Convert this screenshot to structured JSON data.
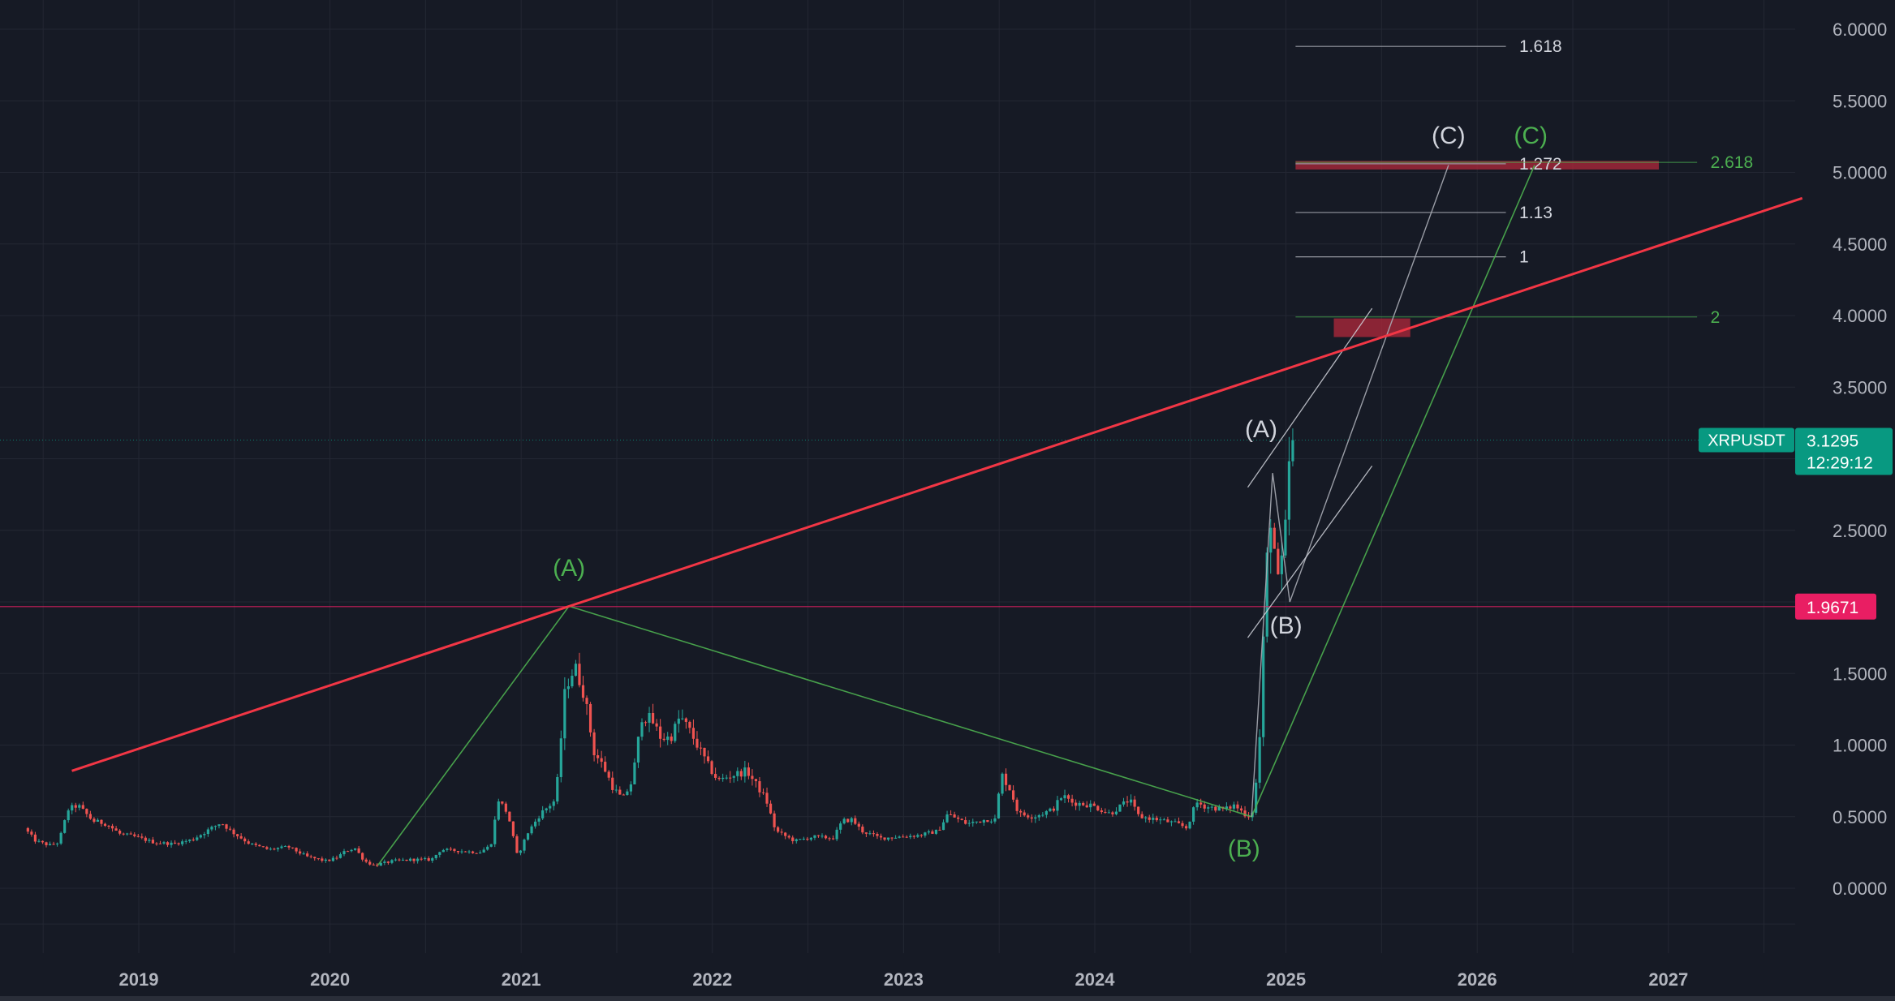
{
  "chart_data": {
    "type": "candlestick",
    "symbol": "XRPUSDT",
    "last_price": "3.1295",
    "countdown": "12:29:12",
    "marked_level_label": "1.9671",
    "marked_level_value": 1.9671,
    "ylim": [
      -0.35,
      6.1
    ],
    "y_ticks": [
      {
        "value": 6.0,
        "label": "6.0000"
      },
      {
        "value": 5.5,
        "label": "5.5000"
      },
      {
        "value": 5.0,
        "label": "5.0000"
      },
      {
        "value": 4.5,
        "label": "4.5000"
      },
      {
        "value": 4.0,
        "label": "4.0000"
      },
      {
        "value": 3.5,
        "label": "3.5000"
      },
      {
        "value": 2.5,
        "label": "2.5000"
      },
      {
        "value": 1.5,
        "label": "1.5000"
      },
      {
        "value": 1.0,
        "label": "1.0000"
      },
      {
        "value": 0.5,
        "label": "0.5000"
      },
      {
        "value": 0.0,
        "label": "0.0000"
      }
    ],
    "x_ticks": [
      {
        "value": 2019,
        "label": "2019"
      },
      {
        "value": 2020,
        "label": "2020"
      },
      {
        "value": 2021,
        "label": "2021"
      },
      {
        "value": 2022,
        "label": "2022"
      },
      {
        "value": 2023,
        "label": "2023"
      },
      {
        "value": 2024,
        "label": "2024"
      },
      {
        "value": 2025,
        "label": "2025"
      },
      {
        "value": 2026,
        "label": "2026"
      },
      {
        "value": 2027,
        "label": "2027"
      }
    ],
    "price_path": [
      [
        2018.42,
        0.42
      ],
      [
        2018.48,
        0.33
      ],
      [
        2018.55,
        0.3
      ],
      [
        2018.6,
        0.32
      ],
      [
        2018.65,
        0.55
      ],
      [
        2018.7,
        0.58
      ],
      [
        2018.78,
        0.47
      ],
      [
        2018.85,
        0.45
      ],
      [
        2018.92,
        0.38
      ],
      [
        2019.0,
        0.36
      ],
      [
        2019.1,
        0.32
      ],
      [
        2019.2,
        0.31
      ],
      [
        2019.3,
        0.34
      ],
      [
        2019.4,
        0.42
      ],
      [
        2019.45,
        0.46
      ],
      [
        2019.5,
        0.4
      ],
      [
        2019.6,
        0.31
      ],
      [
        2019.7,
        0.27
      ],
      [
        2019.8,
        0.29
      ],
      [
        2019.9,
        0.22
      ],
      [
        2020.0,
        0.19
      ],
      [
        2020.05,
        0.21
      ],
      [
        2020.1,
        0.26
      ],
      [
        2020.15,
        0.28
      ],
      [
        2020.2,
        0.19
      ],
      [
        2020.25,
        0.16
      ],
      [
        2020.35,
        0.19
      ],
      [
        2020.45,
        0.2
      ],
      [
        2020.55,
        0.2
      ],
      [
        2020.6,
        0.27
      ],
      [
        2020.7,
        0.26
      ],
      [
        2020.8,
        0.25
      ],
      [
        2020.86,
        0.3
      ],
      [
        2020.9,
        0.62
      ],
      [
        2020.95,
        0.52
      ],
      [
        2021.0,
        0.22
      ],
      [
        2021.05,
        0.38
      ],
      [
        2021.12,
        0.52
      ],
      [
        2021.2,
        0.62
      ],
      [
        2021.25,
        1.4
      ],
      [
        2021.3,
        1.55
      ],
      [
        2021.35,
        1.35
      ],
      [
        2021.4,
        0.95
      ],
      [
        2021.45,
        0.85
      ],
      [
        2021.5,
        0.7
      ],
      [
        2021.55,
        0.62
      ],
      [
        2021.6,
        0.75
      ],
      [
        2021.65,
        1.2
      ],
      [
        2021.7,
        1.18
      ],
      [
        2021.75,
        1.05
      ],
      [
        2021.8,
        1.05
      ],
      [
        2021.85,
        1.2
      ],
      [
        2021.9,
        1.1
      ],
      [
        2022.0,
        0.85
      ],
      [
        2022.05,
        0.75
      ],
      [
        2022.1,
        0.78
      ],
      [
        2022.2,
        0.82
      ],
      [
        2022.25,
        0.72
      ],
      [
        2022.3,
        0.62
      ],
      [
        2022.35,
        0.4
      ],
      [
        2022.45,
        0.33
      ],
      [
        2022.55,
        0.36
      ],
      [
        2022.65,
        0.35
      ],
      [
        2022.7,
        0.47
      ],
      [
        2022.75,
        0.48
      ],
      [
        2022.8,
        0.4
      ],
      [
        2022.9,
        0.35
      ],
      [
        2023.0,
        0.36
      ],
      [
        2023.1,
        0.37
      ],
      [
        2023.2,
        0.4
      ],
      [
        2023.25,
        0.52
      ],
      [
        2023.35,
        0.45
      ],
      [
        2023.45,
        0.48
      ],
      [
        2023.5,
        0.48
      ],
      [
        2023.53,
        0.8
      ],
      [
        2023.58,
        0.68
      ],
      [
        2023.62,
        0.52
      ],
      [
        2023.7,
        0.5
      ],
      [
        2023.8,
        0.55
      ],
      [
        2023.85,
        0.65
      ],
      [
        2023.9,
        0.6
      ],
      [
        2024.0,
        0.58
      ],
      [
        2024.1,
        0.52
      ],
      [
        2024.2,
        0.62
      ],
      [
        2024.25,
        0.5
      ],
      [
        2024.35,
        0.48
      ],
      [
        2024.45,
        0.45
      ],
      [
        2024.5,
        0.42
      ],
      [
        2024.55,
        0.6
      ],
      [
        2024.6,
        0.57
      ],
      [
        2024.7,
        0.55
      ],
      [
        2024.75,
        0.58
      ],
      [
        2024.82,
        0.5
      ],
      [
        2024.85,
        0.55
      ],
      [
        2024.88,
        1.0
      ],
      [
        2024.9,
        1.7
      ],
      [
        2024.92,
        2.3
      ],
      [
        2024.94,
        2.6
      ],
      [
        2024.96,
        2.35
      ],
      [
        2024.98,
        2.1
      ],
      [
        2025.0,
        2.3
      ],
      [
        2025.02,
        2.55
      ],
      [
        2025.04,
        3.1
      ],
      [
        2025.05,
        3.13
      ]
    ],
    "drawings": {
      "red_trendline": {
        "from": [
          2018.65,
          0.82
        ],
        "to": [
          2027.7,
          4.82
        ]
      },
      "horizontal_level": {
        "value": 1.9671
      },
      "green_wave": [
        [
          2020.25,
          0.16
        ],
        [
          2021.25,
          1.97
        ],
        [
          2024.82,
          0.5
        ],
        [
          2026.3,
          5.05
        ]
      ],
      "white_wave": [
        [
          2024.82,
          0.5
        ],
        [
          2024.93,
          2.9
        ],
        [
          2025.02,
          2.0
        ],
        [
          2025.85,
          5.05
        ]
      ],
      "white_channel": [
        {
          "from": [
            2024.8,
            2.8
          ],
          "to": [
            2025.45,
            4.05
          ]
        },
        {
          "from": [
            2024.8,
            1.75
          ],
          "to": [
            2025.45,
            2.95
          ]
        }
      ],
      "red_zones": [
        {
          "x0": 2025.25,
          "x1": 2025.65,
          "y0": 3.85,
          "y1": 3.98
        },
        {
          "x0": 2025.05,
          "x1": 2026.95,
          "y0": 5.02,
          "y1": 5.08
        }
      ],
      "fib_white": [
        {
          "value": 5.88,
          "label": "1.618"
        },
        {
          "value": 5.06,
          "label": "1.272"
        },
        {
          "value": 4.72,
          "label": "1.13"
        },
        {
          "value": 4.41,
          "label": "1"
        }
      ],
      "fib_green": [
        {
          "value": 5.07,
          "label": "2.618"
        },
        {
          "value": 3.99,
          "label": "2"
        }
      ],
      "wave_labels": [
        {
          "text": "(A)",
          "x": 2021.25,
          "y": 2.18,
          "color": "green"
        },
        {
          "text": "(B)",
          "x": 2024.78,
          "y": 0.22,
          "color": "green"
        },
        {
          "text": "(C)",
          "x": 2026.28,
          "y": 5.2,
          "color": "green"
        },
        {
          "text": "(A)",
          "x": 2024.87,
          "y": 3.15,
          "color": "white"
        },
        {
          "text": "(B)",
          "x": 2025.0,
          "y": 1.78,
          "color": "white"
        },
        {
          "text": "(C)",
          "x": 2025.85,
          "y": 5.2,
          "color": "white"
        }
      ]
    }
  },
  "colors": {
    "background": "#161a25",
    "grid": "#232733",
    "axis_text": "#b2b5be",
    "up": "#26a69a",
    "down": "#ef5350",
    "green_wave": "#4caf50",
    "white_wave": "#d1d4dc",
    "trendline": "#f23645",
    "level_badge": "#e91e63",
    "symbol_badge": "#089981"
  }
}
